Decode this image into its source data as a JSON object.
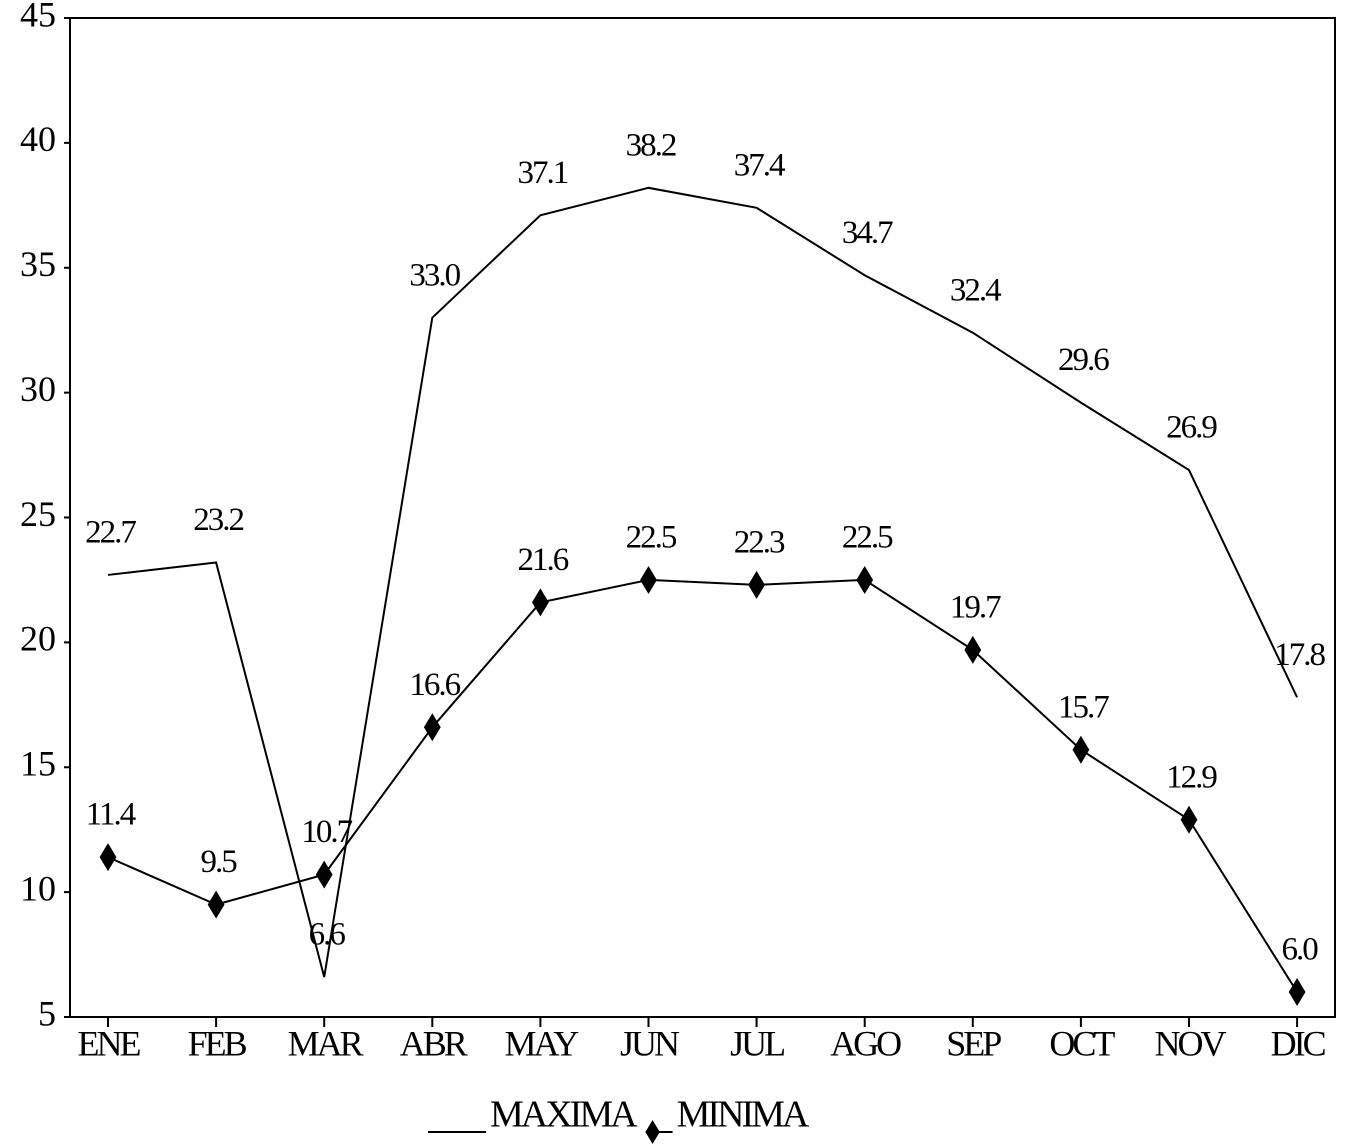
{
  "chart_data": {
    "type": "line",
    "categories": [
      "ENE",
      "FEB",
      "MAR",
      "ABR",
      "MAY",
      "JUN",
      "JUL",
      "AGO",
      "SEP",
      "OCT",
      "NOV",
      "DIC"
    ],
    "series": [
      {
        "name": "MAXIMA",
        "color": "#000000",
        "marker": "none",
        "values": [
          22.7,
          23.2,
          6.6,
          33.0,
          37.1,
          38.2,
          37.4,
          34.7,
          32.4,
          29.6,
          26.9,
          17.8
        ],
        "value_labels": [
          "22.7",
          "23.2",
          "6.6",
          "33.0",
          "37.1",
          "38.2",
          "37.4",
          "34.7",
          "32.4",
          "29.6",
          "26.9",
          "17.8"
        ]
      },
      {
        "name": "MINIMA",
        "color": "#000000",
        "marker": "diamond",
        "values": [
          11.4,
          9.5,
          10.7,
          16.6,
          21.6,
          22.5,
          22.3,
          22.5,
          19.7,
          15.7,
          12.9,
          6.0
        ],
        "value_labels": [
          "11.4",
          "9.5",
          "10.7",
          "16.6",
          "21.6",
          "22.5",
          "22.3",
          "22.5",
          "19.7",
          "15.7",
          "12.9",
          "6.0"
        ]
      }
    ],
    "ylim": [
      5,
      45
    ],
    "yticks": [
      5,
      10,
      15,
      20,
      25,
      30,
      35,
      40,
      45
    ],
    "grid": false,
    "legend": "bottom"
  }
}
